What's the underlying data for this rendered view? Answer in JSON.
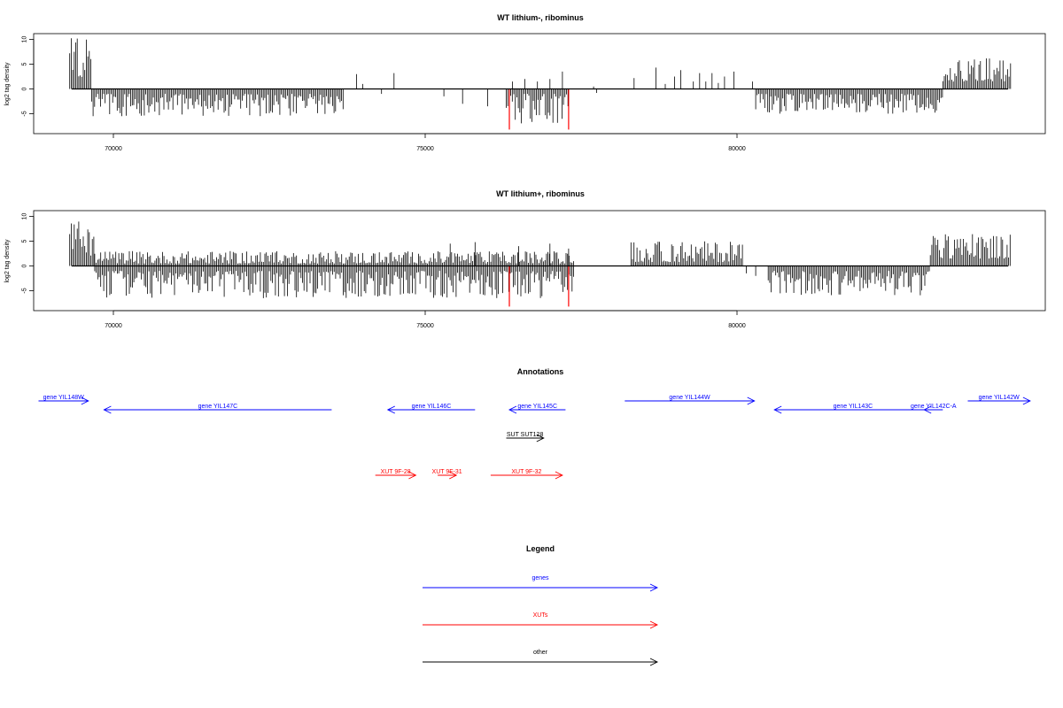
{
  "chart_data": [
    {
      "type": "bar",
      "title": "WT lithium-, ribominus",
      "ylabel": "log2 tag density",
      "xlim": [
        68800,
        84700
      ],
      "ylim": [
        -9,
        11
      ],
      "xticks": [
        "70000",
        "75000",
        "80000"
      ],
      "yticks": [
        "10",
        "5",
        "0",
        "-5"
      ],
      "segments": [
        {
          "from": 69300,
          "to": 69650,
          "direction": "up",
          "max": 10.5,
          "min": 2
        },
        {
          "from": 69650,
          "to": 73700,
          "direction": "down",
          "max": 5.5,
          "min": 1
        },
        {
          "from": 76300,
          "to": 77300,
          "direction": "down",
          "max": 7,
          "min": 1
        },
        {
          "from": 80300,
          "to": 83300,
          "direction": "down",
          "max": 5,
          "min": 1
        },
        {
          "from": 83300,
          "to": 84400,
          "direction": "up",
          "max": 6.5,
          "min": 1.5
        }
      ],
      "extra_bars": [
        [
          73900,
          3
        ],
        [
          74000,
          1
        ],
        [
          74500,
          3.2
        ],
        [
          74300,
          -1
        ],
        [
          75300,
          -1.5
        ],
        [
          75600,
          -3
        ],
        [
          76000,
          -3.5
        ],
        [
          76400,
          1.5
        ],
        [
          76600,
          2
        ],
        [
          76800,
          1.5
        ],
        [
          77000,
          2
        ],
        [
          77200,
          3.5
        ],
        [
          77700,
          0.5
        ],
        [
          77750,
          -0.8
        ],
        [
          78350,
          2.2
        ],
        [
          78700,
          4.3
        ],
        [
          78850,
          1
        ],
        [
          79000,
          2.5
        ],
        [
          79100,
          3.8
        ],
        [
          79300,
          1.5
        ],
        [
          79400,
          3.2
        ],
        [
          79500,
          1.5
        ],
        [
          79600,
          3.2
        ],
        [
          79700,
          1.2
        ],
        [
          79800,
          2.5
        ],
        [
          79950,
          3.5
        ],
        [
          80250,
          1.5
        ]
      ],
      "red_bars": [
        76350,
        77300
      ],
      "red_depth": 8.2
    },
    {
      "type": "bar",
      "title": "WT lithium+, ribominus",
      "ylabel": "log2 tag density",
      "xlim": [
        68800,
        84700
      ],
      "ylim": [
        -9,
        11
      ],
      "xticks": [
        "70000",
        "75000",
        "80000"
      ],
      "yticks": [
        "10",
        "5",
        "0",
        "-5"
      ],
      "segments": [
        {
          "from": 69300,
          "to": 69700,
          "direction": "up",
          "max": 10.5,
          "min": 2
        },
        {
          "from": 69700,
          "to": 77400,
          "direction": "down",
          "max": 6.5,
          "min": 1
        },
        {
          "from": 69700,
          "to": 77400,
          "direction": "up",
          "max": 3,
          "min": 0.5
        },
        {
          "from": 78300,
          "to": 80100,
          "direction": "up",
          "max": 5,
          "min": 0.8
        },
        {
          "from": 80500,
          "to": 83100,
          "direction": "down",
          "max": 6,
          "min": 1
        },
        {
          "from": 83100,
          "to": 84400,
          "direction": "up",
          "max": 6.5,
          "min": 1.5
        }
      ],
      "extra_bars": [
        [
          75400,
          4.5
        ],
        [
          75800,
          4.8
        ],
        [
          76500,
          4
        ],
        [
          77000,
          4.5
        ],
        [
          77300,
          3.5
        ],
        [
          80150,
          -1.5
        ],
        [
          80300,
          -2
        ]
      ],
      "red_bars": [
        76350,
        77300
      ],
      "red_depth": 8.2
    }
  ],
  "annotations": {
    "title": "Annotations",
    "features": [
      {
        "label": "gene YIL148W",
        "color": "#0000ff",
        "row": 0,
        "from": 68800,
        "to": 69600,
        "direction": "right"
      },
      {
        "label": "gene YIL147C",
        "color": "#0000ff",
        "row": 1,
        "from": 69850,
        "to": 73500,
        "direction": "left"
      },
      {
        "label": "gene YIL146C",
        "color": "#0000ff",
        "row": 1,
        "from": 74400,
        "to": 75800,
        "direction": "left"
      },
      {
        "label": "gene YIL145C",
        "color": "#0000ff",
        "row": 1,
        "from": 76350,
        "to": 77250,
        "direction": "left"
      },
      {
        "label": "gene YIL144W",
        "color": "#0000ff",
        "row": 0,
        "from": 78200,
        "to": 80280,
        "direction": "right"
      },
      {
        "label": "gene YIL143C",
        "color": "#0000ff",
        "row": 1,
        "from": 80600,
        "to": 83120,
        "direction": "left"
      },
      {
        "label": "gene YIL142C-A",
        "color": "#0000ff",
        "row": 1,
        "from": 83000,
        "to": 83300,
        "direction": "left"
      },
      {
        "label": "gene YIL142W",
        "color": "#0000ff",
        "row": 0,
        "from": 83700,
        "to": 84700,
        "direction": "right"
      },
      {
        "label": "SUT SUT128",
        "color": "#000000",
        "row": 2,
        "from": 76300,
        "to": 76900,
        "direction": "right"
      },
      {
        "label": "XUT 9F-28",
        "color": "#ff0000",
        "row": 3,
        "from": 74200,
        "to": 74850,
        "direction": "right"
      },
      {
        "label": "XUT 9F-31",
        "color": "#ff0000",
        "row": 3,
        "from": 75200,
        "to": 75500,
        "direction": "right"
      },
      {
        "label": "XUT 9F-32",
        "color": "#ff0000",
        "row": 3,
        "from": 76050,
        "to": 77200,
        "direction": "right"
      }
    ]
  },
  "legend": {
    "title": "Legend",
    "items": [
      {
        "label": "genes",
        "color": "#0000ff"
      },
      {
        "label": "XUTs",
        "color": "#ff0000"
      },
      {
        "label": "other",
        "color": "#000000"
      }
    ]
  },
  "colors": {
    "bars": "#000000",
    "highlight": "#ff0000",
    "gene": "#0000ff",
    "xut": "#ff0000",
    "other": "#000000"
  }
}
